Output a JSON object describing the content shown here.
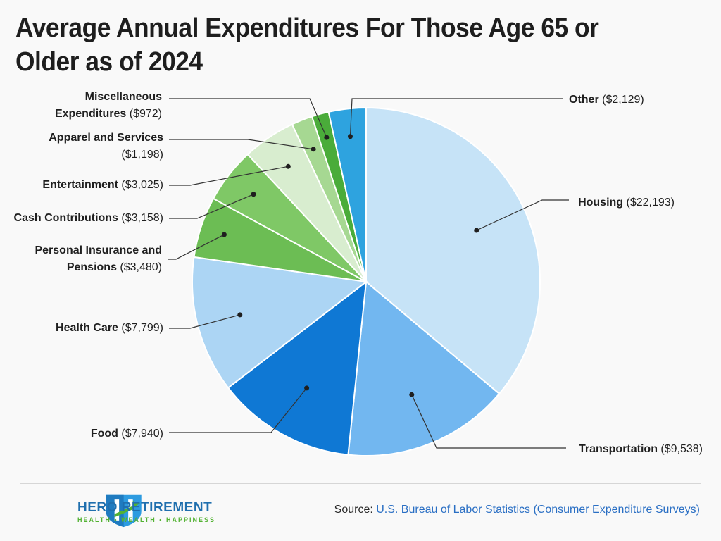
{
  "chart_data": {
    "type": "pie",
    "title": "Average Annual Expenditures For Those Age 65 or Older as of 2024",
    "slices": [
      {
        "name": "Housing",
        "display": "($22,193)",
        "value": 22193,
        "color": "#c6e3f7"
      },
      {
        "name": "Transportation",
        "display": "($9,538)",
        "value": 9538,
        "color": "#72b7f0"
      },
      {
        "name": "Food",
        "display": "($7,940)",
        "value": 7940,
        "color": "#0f78d4"
      },
      {
        "name": "Health Care",
        "display": "($7,799)",
        "value": 7799,
        "color": "#acd5f4"
      },
      {
        "name": "Personal Insurance and Pensions",
        "display": "($3,480)",
        "value": 3480,
        "color": "#6cbd54"
      },
      {
        "name": "Cash Contributions",
        "display": "($3,158)",
        "value": 3158,
        "color": "#7fc866"
      },
      {
        "name": "Entertainment",
        "display": "($3,025)",
        "value": 3025,
        "color": "#d8edcf"
      },
      {
        "name": "Apparel and Services",
        "display": "($1,198)",
        "value": 1198,
        "color": "#a6d892"
      },
      {
        "name": "Miscellaneous Expenditures",
        "display": "($972)",
        "value": 972,
        "color": "#4aac3a"
      },
      {
        "name": "Other",
        "display": "($2,129)",
        "value": 2129,
        "color": "#2ea3df"
      }
    ]
  },
  "footer": {
    "brand_name": "HERO RETIREMENT",
    "brand_tagline": "HEALTH • WEALTH • HAPPINESS",
    "source_prefix": "Source:",
    "source_org": "U.S. Bureau of Labor Statistics (Consumer Expenditure Surveys)"
  }
}
